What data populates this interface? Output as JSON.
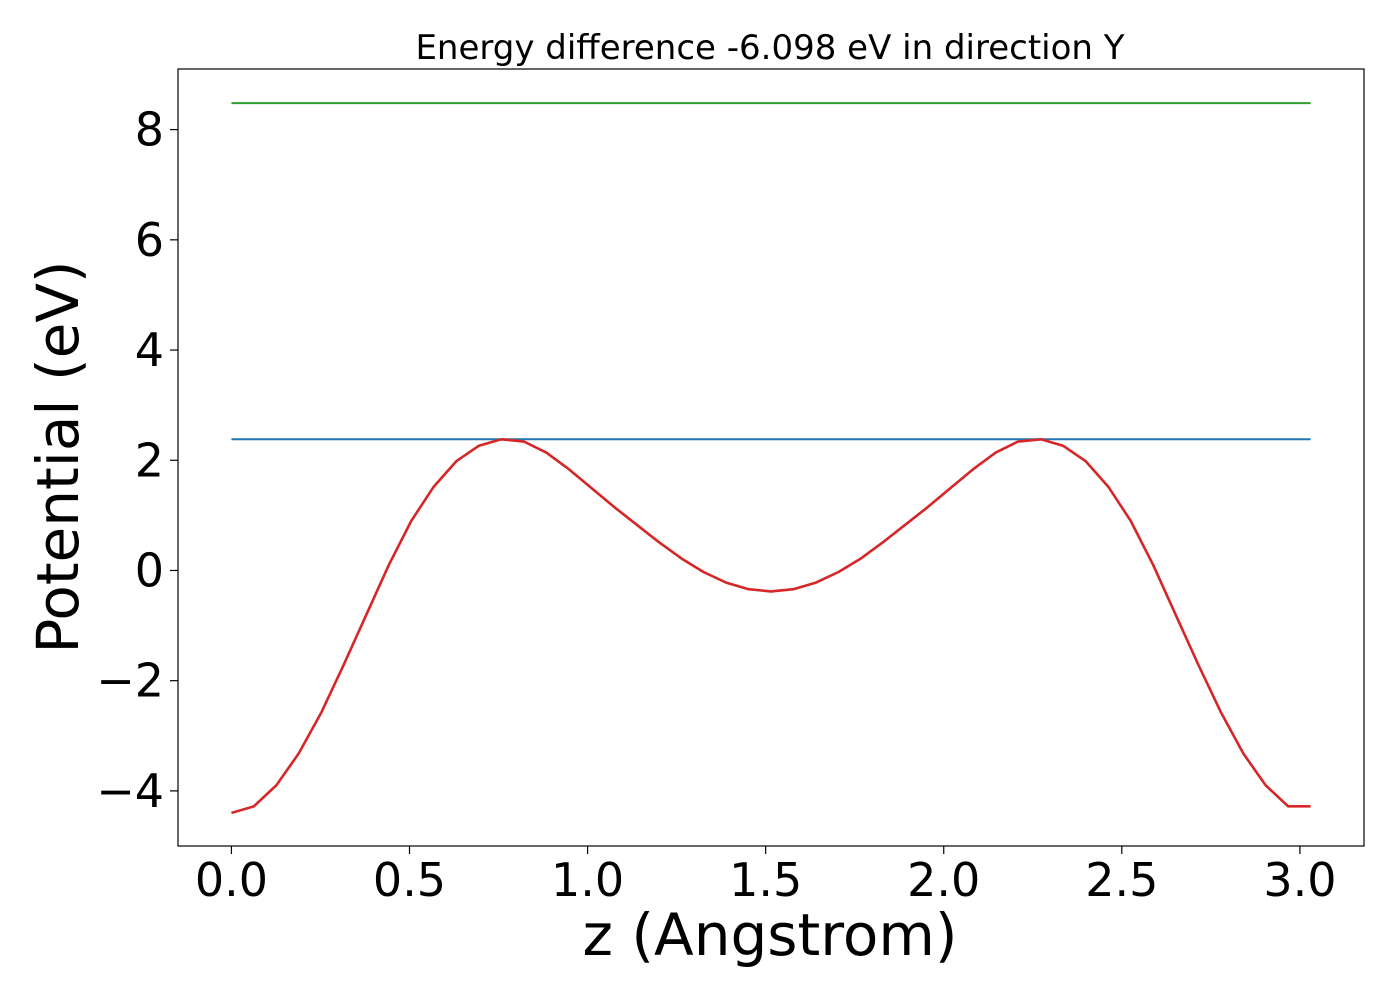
{
  "chart_data": {
    "type": "line",
    "title": "Energy difference -6.098 eV in direction Y",
    "xlabel": "z (Angstrom)",
    "ylabel": "Potential (eV)",
    "xlim": [
      -0.15,
      3.18
    ],
    "ylim": [
      -5.0,
      9.1
    ],
    "xticks": [
      0.0,
      0.5,
      1.0,
      1.5,
      2.0,
      2.5,
      3.0
    ],
    "xtick_labels": [
      "0.0",
      "0.5",
      "1.0",
      "1.5",
      "2.0",
      "2.5",
      "3.0"
    ],
    "yticks": [
      -4,
      -2,
      0,
      2,
      4,
      6,
      8
    ],
    "ytick_labels": [
      "−4",
      "−2",
      "0",
      "2",
      "4",
      "6",
      "8"
    ],
    "grid": false,
    "series": [
      {
        "color": "#2ca02c",
        "x": [
          0.0,
          3.03
        ],
        "y": [
          8.48,
          8.48
        ]
      },
      {
        "color": "#1f77b4",
        "x": [
          0.0,
          3.03
        ],
        "y": [
          2.38,
          2.38
        ]
      },
      {
        "color": "#d62728",
        "x": [
          0.0,
          0.063,
          0.126,
          0.189,
          0.253,
          0.316,
          0.379,
          0.442,
          0.505,
          0.568,
          0.631,
          0.694,
          0.758,
          0.821,
          0.884,
          0.947,
          1.01,
          1.073,
          1.136,
          1.199,
          1.263,
          1.326,
          1.389,
          1.452,
          1.515,
          1.578,
          1.641,
          1.704,
          1.768,
          1.831,
          1.894,
          1.957,
          2.02,
          2.083,
          2.146,
          2.209,
          2.273,
          2.336,
          2.399,
          2.462,
          2.525,
          2.588,
          2.651,
          2.714,
          2.778,
          2.841,
          2.904,
          2.967,
          3.03
        ],
        "y": [
          -4.4,
          -4.28,
          -3.9,
          -3.32,
          -2.57,
          -1.7,
          -0.8,
          0.1,
          0.9,
          1.52,
          1.98,
          2.26,
          2.38,
          2.34,
          2.14,
          1.84,
          1.5,
          1.16,
          0.84,
          0.52,
          0.22,
          -0.03,
          -0.22,
          -0.34,
          -0.38,
          -0.34,
          -0.22,
          -0.03,
          0.22,
          0.52,
          0.84,
          1.16,
          1.5,
          1.84,
          2.14,
          2.34,
          2.38,
          2.26,
          1.98,
          1.52,
          0.9,
          0.1,
          -0.8,
          -1.7,
          -2.57,
          -3.32,
          -3.9,
          -4.28,
          -4.28
        ]
      }
    ]
  }
}
